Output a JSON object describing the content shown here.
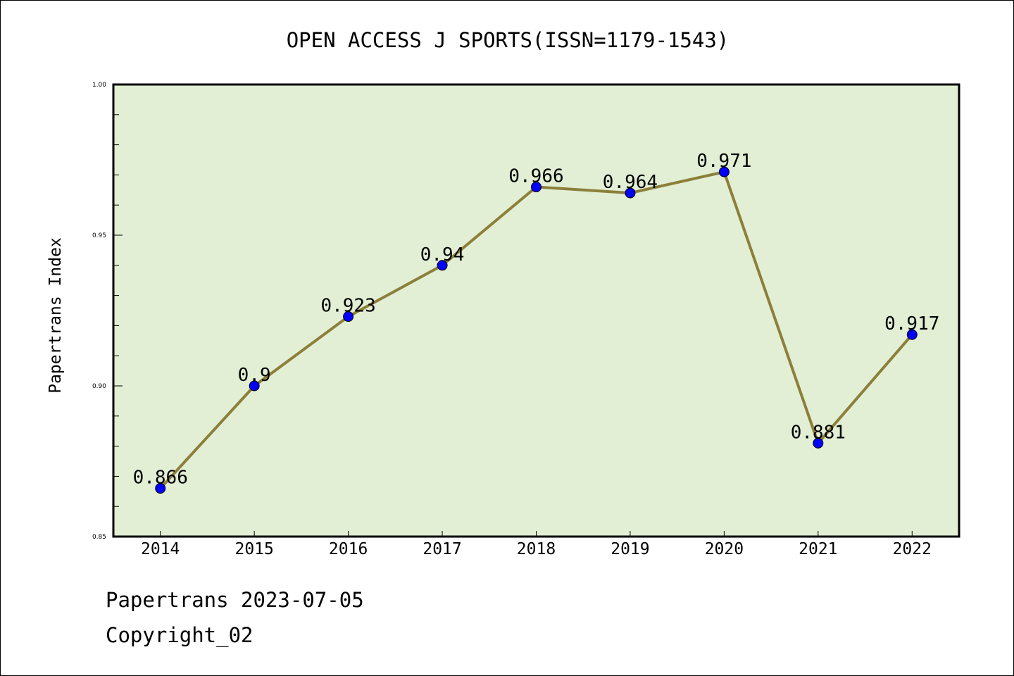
{
  "chart_data": {
    "type": "line",
    "title": "OPEN ACCESS J SPORTS(ISSN=1179-1543)",
    "xlabel": "",
    "ylabel": "Papertrans Index",
    "x": [
      2014,
      2015,
      2016,
      2017,
      2018,
      2019,
      2020,
      2021,
      2022
    ],
    "x_tick_labels": [
      "2014",
      "2015",
      "2016",
      "2017",
      "2018",
      "2019",
      "2020",
      "2021",
      "2022"
    ],
    "series": [
      {
        "name": "Papertrans Index",
        "values": [
          0.866,
          0.9,
          0.923,
          0.94,
          0.966,
          0.964,
          0.971,
          0.881,
          0.917
        ],
        "labels": [
          "0.866",
          "0.9",
          "0.923",
          "0.94",
          "0.966",
          "0.964",
          "0.971",
          "0.881",
          "0.917"
        ]
      }
    ],
    "xlim": [
      2013.5,
      2022.5
    ],
    "ylim": [
      0.85,
      1.0
    ],
    "y_tick_labels": [
      "0.85",
      "0.90",
      "0.95",
      "1.00"
    ],
    "y_ticks": [
      0.85,
      0.9,
      0.95,
      1.0
    ],
    "y_minor_step": 0.01,
    "grid": false,
    "legend": "none",
    "colors": {
      "background": "#e2efd5",
      "line": "#8c7f3a",
      "marker": "#0000ff"
    }
  },
  "footer": {
    "line1": "Papertrans 2023-07-05",
    "line2": "Copyright_02"
  }
}
